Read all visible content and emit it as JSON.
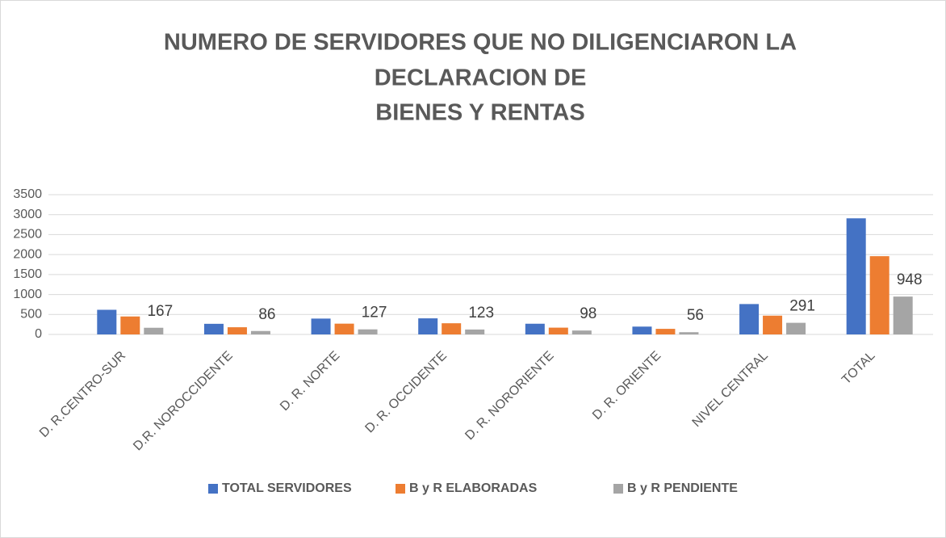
{
  "chart_data": {
    "type": "bar",
    "title": [
      "NUMERO DE SERVIDORES QUE NO DILIGENCIARON LA",
      "DECLARACION DE",
      "BIENES Y RENTAS"
    ],
    "categories": [
      "D. R.CENTRO-SUR",
      "D.R. NOROCCIDENTE",
      "D. R. NORTE",
      "D. R. OCCIDENTE",
      "D. R. NORORIENTE",
      "D. R. ORIENTE",
      "NIVEL CENTRAL",
      "TOTAL"
    ],
    "series": [
      {
        "name": "TOTAL SERVIDORES",
        "color": "#4472c4",
        "values": [
          617,
          266,
          397,
          403,
          268,
          196,
          761,
          2908
        ]
      },
      {
        "name": "B y R ELABORADAS",
        "color": "#ed7d31",
        "values": [
          450,
          180,
          270,
          280,
          170,
          140,
          470,
          1960
        ]
      },
      {
        "name": "B y R PENDIENTE",
        "color": "#a5a5a5",
        "values": [
          167,
          86,
          127,
          123,
          98,
          56,
          291,
          948
        ],
        "data_labels": true
      }
    ],
    "ylim": [
      0,
      3500
    ],
    "yticks": [
      0,
      500,
      1000,
      1500,
      2000,
      2500,
      3000,
      3500
    ],
    "grid": true,
    "legend": "bottom"
  }
}
